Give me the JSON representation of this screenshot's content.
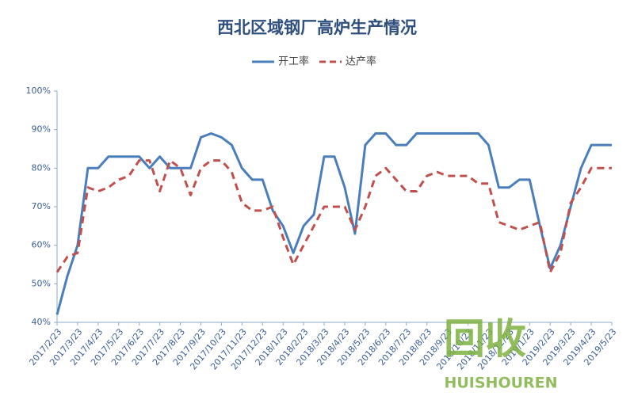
{
  "chart_data": {
    "type": "line",
    "title": "西北区域钢厂高炉生产情况",
    "categories": [
      "2017/2/23",
      null,
      "2017/3/23",
      null,
      "2017/4/23",
      null,
      "2017/5/23",
      null,
      "2017/6/23",
      null,
      "2017/7/23",
      null,
      "2017/8/23",
      null,
      "2017/9/23",
      null,
      "2017/10/23",
      null,
      "2017/11/23",
      null,
      "2017/12/23",
      null,
      "2018/1/23",
      null,
      "2018/2/23",
      null,
      "2018/3/23",
      null,
      "2018/4/23",
      null,
      "2018/5/23",
      null,
      "2018/6/23",
      null,
      "2018/7/23",
      null,
      "2018/8/23",
      null,
      "2018/9/23",
      null,
      "2018/10/23",
      null,
      "2018/11/23",
      null,
      "2018/12/23",
      null,
      "2019/1/23",
      null,
      "2019/2/23",
      null,
      "2019/3/23",
      null,
      "2019/4/23",
      null,
      "2019/5/23"
    ],
    "series": [
      {
        "name": "开工率",
        "color": "#4a7ebb",
        "dashed": false,
        "values": [
          42,
          52,
          60,
          80,
          80,
          83,
          83,
          83,
          83,
          80,
          83,
          80,
          80,
          80,
          88,
          89,
          88,
          86,
          80,
          77,
          77,
          69,
          65,
          58,
          65,
          68,
          83,
          83,
          75,
          63,
          86,
          89,
          89,
          86,
          86,
          89,
          89,
          89,
          89,
          89,
          89,
          89,
          86,
          75,
          75,
          77,
          77,
          65,
          54,
          60,
          70,
          80,
          86,
          86,
          86
        ]
      },
      {
        "name": "达产率",
        "color": "#c0504d",
        "dashed": true,
        "values": [
          53,
          57,
          58,
          75,
          74,
          75,
          77,
          78,
          82,
          82,
          74,
          82,
          80,
          73,
          80,
          82,
          82,
          79,
          71,
          69,
          69,
          70,
          62,
          55,
          60,
          65,
          70,
          70,
          70,
          64,
          70,
          78,
          80,
          77,
          74,
          74,
          78,
          79,
          78,
          78,
          78,
          76,
          76,
          66,
          65,
          64,
          65,
          66,
          53,
          58,
          71,
          75,
          80,
          80,
          80
        ]
      }
    ],
    "ylim": [
      40,
      100
    ],
    "yticks": [
      {
        "value": 40,
        "label": "40%"
      },
      {
        "value": 50,
        "label": "50%"
      },
      {
        "value": 60,
        "label": "60%"
      },
      {
        "value": 70,
        "label": "70%"
      },
      {
        "value": 80,
        "label": "80%"
      },
      {
        "value": 90,
        "label": "90%"
      },
      {
        "value": 100,
        "label": "100%"
      }
    ],
    "grid": false,
    "legend": "top"
  },
  "watermark": {
    "text": "回收",
    "subtext": "HUISHOUREN"
  }
}
